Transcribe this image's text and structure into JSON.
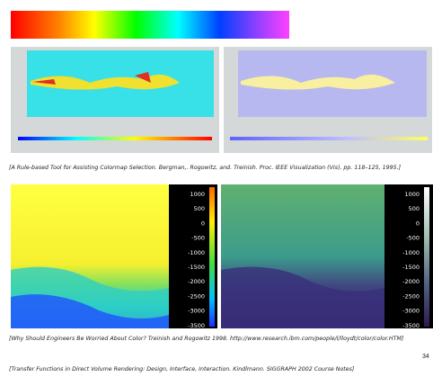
{
  "citations": [
    "[A Rule-based Tool for Assisting Colormap Selection. Bergman,. Rogowitz, and. Treinish. Proc. IEEE Visualization (Vis), pp. 118–125, 1995.]",
    "[Why Should Engineers Be Worried About Color? Treinish and Rogowitz 1998. http://www.research.ibm.com/people/l/lloydt/color/color.HTM]",
    "[Transfer Functions in Direct Volume Rendering: Design, Interface, Interaction. Kindlmann. SIGGRAPH 2002 Course Notes]"
  ],
  "colorbar_labels": [
    1000,
    500,
    0,
    -500,
    -1000,
    -1500,
    -2000,
    -2500,
    -3000,
    -3500
  ],
  "page_number": "34"
}
